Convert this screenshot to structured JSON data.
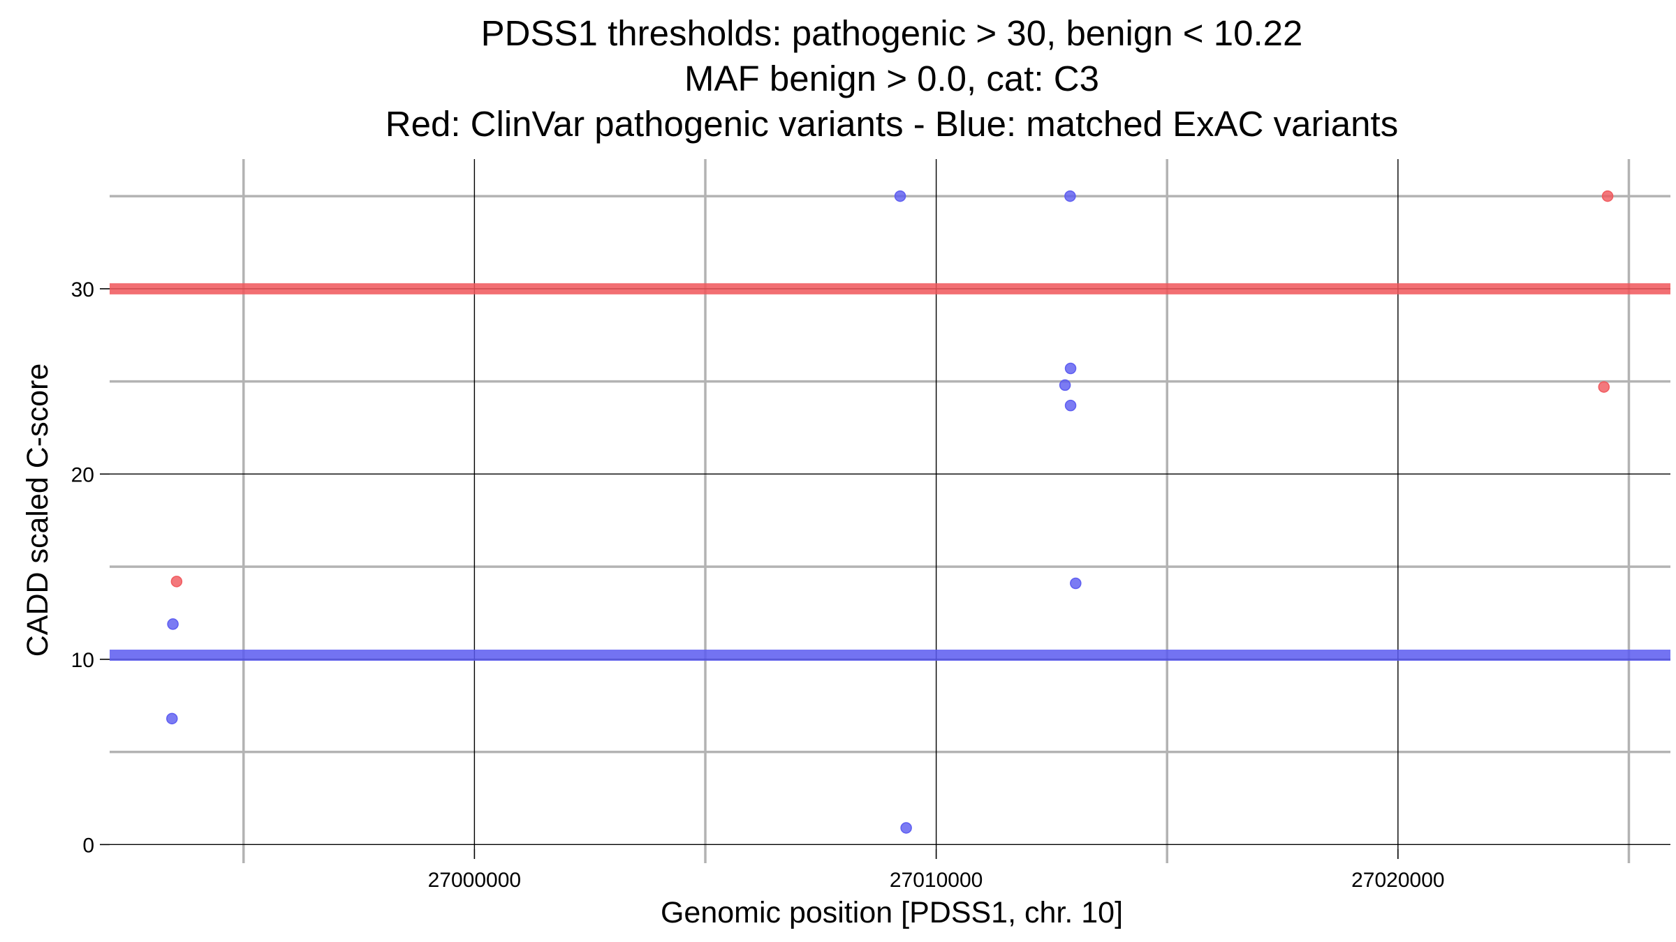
{
  "chart_data": {
    "type": "scatter",
    "title_lines": [
      "PDSS1 thresholds: pathogenic > 30, benign < 10.22",
      "MAF benign > 0.0, cat: C3",
      "Red: ClinVar pathogenic variants - Blue: matched ExAC variants"
    ],
    "xlabel": "Genomic position [PDSS1, chr. 10]",
    "ylabel": "CADD scaled C-score",
    "xlim": [
      26992100,
      27025900
    ],
    "ylim": [
      -0.25,
      37.0
    ],
    "x_major_ticks": [
      27000000,
      27010000,
      27020000
    ],
    "x_minor_ticks": [
      26995000,
      27005000,
      27015000,
      27025000
    ],
    "y_major_ticks": [
      0,
      10,
      20,
      30
    ],
    "y_minor_ticks": [
      5,
      15,
      25,
      35
    ],
    "grid": true,
    "thresholds": [
      {
        "name": "pathogenic",
        "value": 30,
        "color": "#f0565b"
      },
      {
        "name": "benign",
        "value": 10.22,
        "color": "#5a5af0"
      }
    ],
    "series": [
      {
        "color": "#f0565b",
        "points": [
          {
            "x": 26993550,
            "y": 14.2
          },
          {
            "x": 27024540,
            "y": 35.0
          },
          {
            "x": 27024460,
            "y": 24.7
          }
        ]
      },
      {
        "color": "#5a5af0",
        "points": [
          {
            "x": 26993470,
            "y": 11.9
          },
          {
            "x": 26993450,
            "y": 6.8
          },
          {
            "x": 27009220,
            "y": 35.0
          },
          {
            "x": 27009350,
            "y": 0.9
          },
          {
            "x": 27012900,
            "y": 35.0
          },
          {
            "x": 27012910,
            "y": 25.7
          },
          {
            "x": 27012790,
            "y": 24.8
          },
          {
            "x": 27012910,
            "y": 23.7
          },
          {
            "x": 27013020,
            "y": 14.1
          }
        ]
      }
    ]
  }
}
